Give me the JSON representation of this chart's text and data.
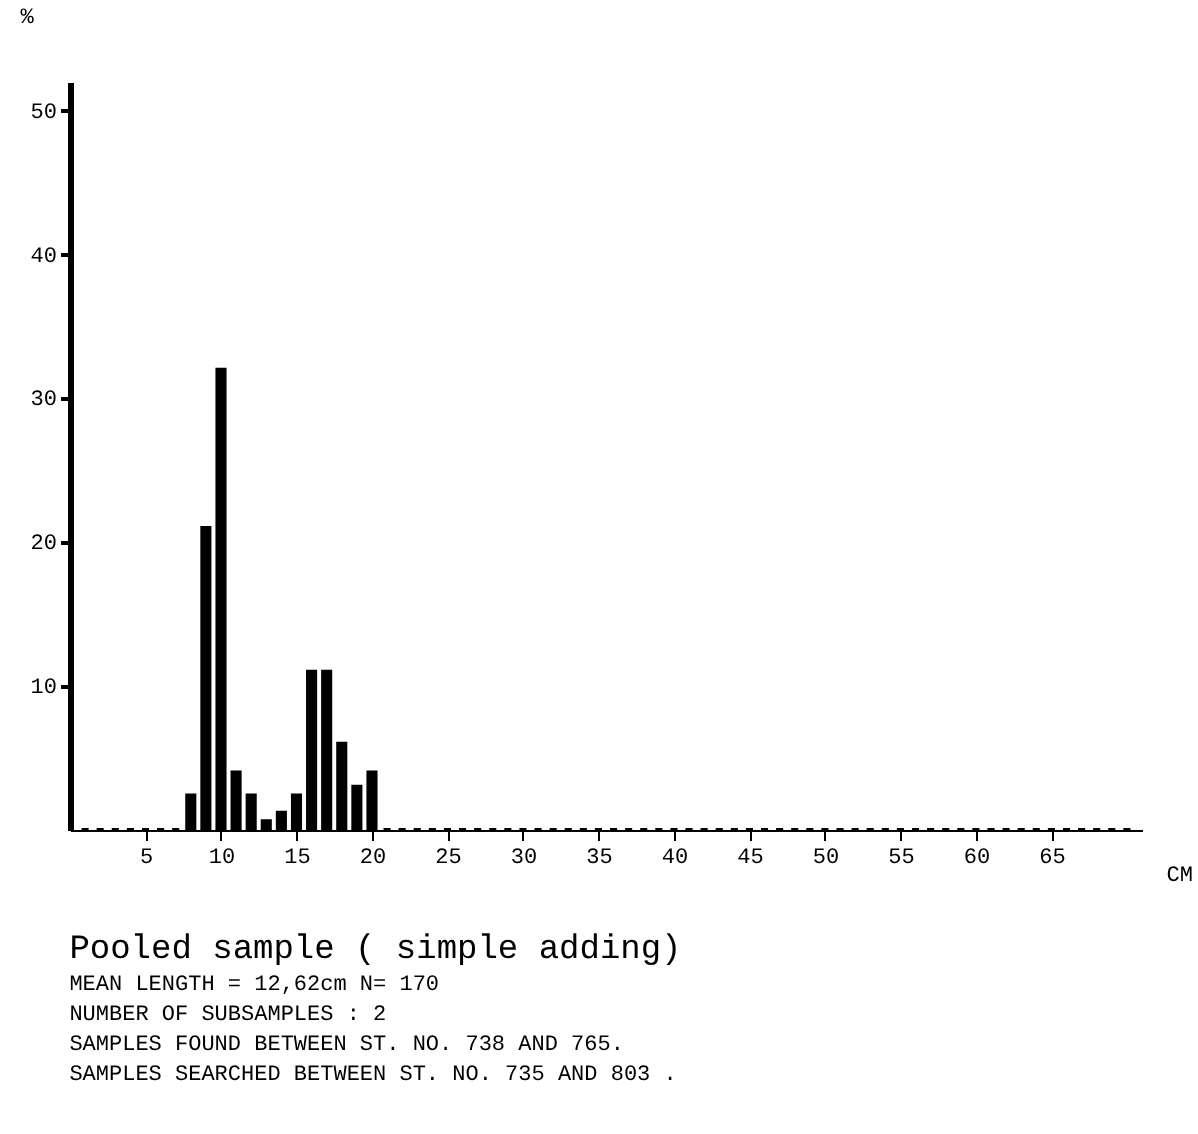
{
  "chart_data": {
    "type": "histogram",
    "title": "Pooled sample  ( simple adding)",
    "annotations": [
      "MEAN LENGTH = 12,62cm  N=  170",
      "NUMBER OF SUBSAMPLES :  2",
      "SAMPLES FOUND BETWEEN ST. NO. 738 AND  765.",
      "SAMPLES SEARCHED BETWEEN ST. NO. 735 AND  803 ."
    ],
    "xlabel": "CM",
    "ylabel": "%",
    "bins": [
      0.5,
      1.5,
      2.5,
      3.5,
      4.5,
      5.5,
      6.5,
      7.5,
      8.5,
      9.5,
      10.5,
      11.5,
      12.5,
      13.5,
      14.5,
      15.5,
      16.5,
      17.5,
      18.5,
      19.5,
      20.5,
      21.5,
      22.5,
      23.5,
      24.5,
      25.5,
      26.5,
      27.5,
      28.5,
      29.5,
      30.5,
      31.5,
      32.5,
      33.5,
      34.5,
      35.5,
      36.5,
      37.5,
      38.5,
      39.5,
      40.5,
      41.5,
      42.5,
      43.5,
      44.5,
      45.5,
      46.5,
      47.5,
      48.5,
      49.5,
      50.5,
      51.5,
      52.5,
      53.5,
      54.5,
      55.5,
      56.5,
      57.5,
      58.5,
      59.5,
      60.5,
      61.5,
      62.5,
      63.5,
      64.5,
      65.5,
      66.5,
      67.5,
      68.5,
      69.5,
      70.5
    ],
    "values": [
      0,
      0,
      0,
      0,
      0,
      0,
      0,
      2.4,
      21,
      32,
      4,
      2.4,
      0.6,
      1.2,
      2.4,
      11,
      11,
      6,
      3,
      4,
      0,
      0,
      0,
      0,
      0,
      0,
      0,
      0,
      0,
      0,
      0,
      0,
      0,
      0,
      0,
      0,
      0,
      0,
      0,
      0,
      0,
      0,
      0,
      0,
      0,
      0,
      0,
      0,
      0,
      0,
      0,
      0,
      0,
      0,
      0,
      0,
      0,
      0,
      0,
      0,
      0,
      0,
      0,
      0,
      0,
      0,
      0,
      0,
      0,
      0
    ],
    "color": "#000000",
    "xlim": [
      0,
      71
    ],
    "xticks": [
      5,
      10,
      15,
      20,
      25,
      30,
      35,
      40,
      45,
      50,
      55,
      60,
      65
    ],
    "ylim": [
      0,
      52
    ],
    "yticks": [
      10,
      20,
      30,
      40,
      50
    ],
    "grid": false
  }
}
